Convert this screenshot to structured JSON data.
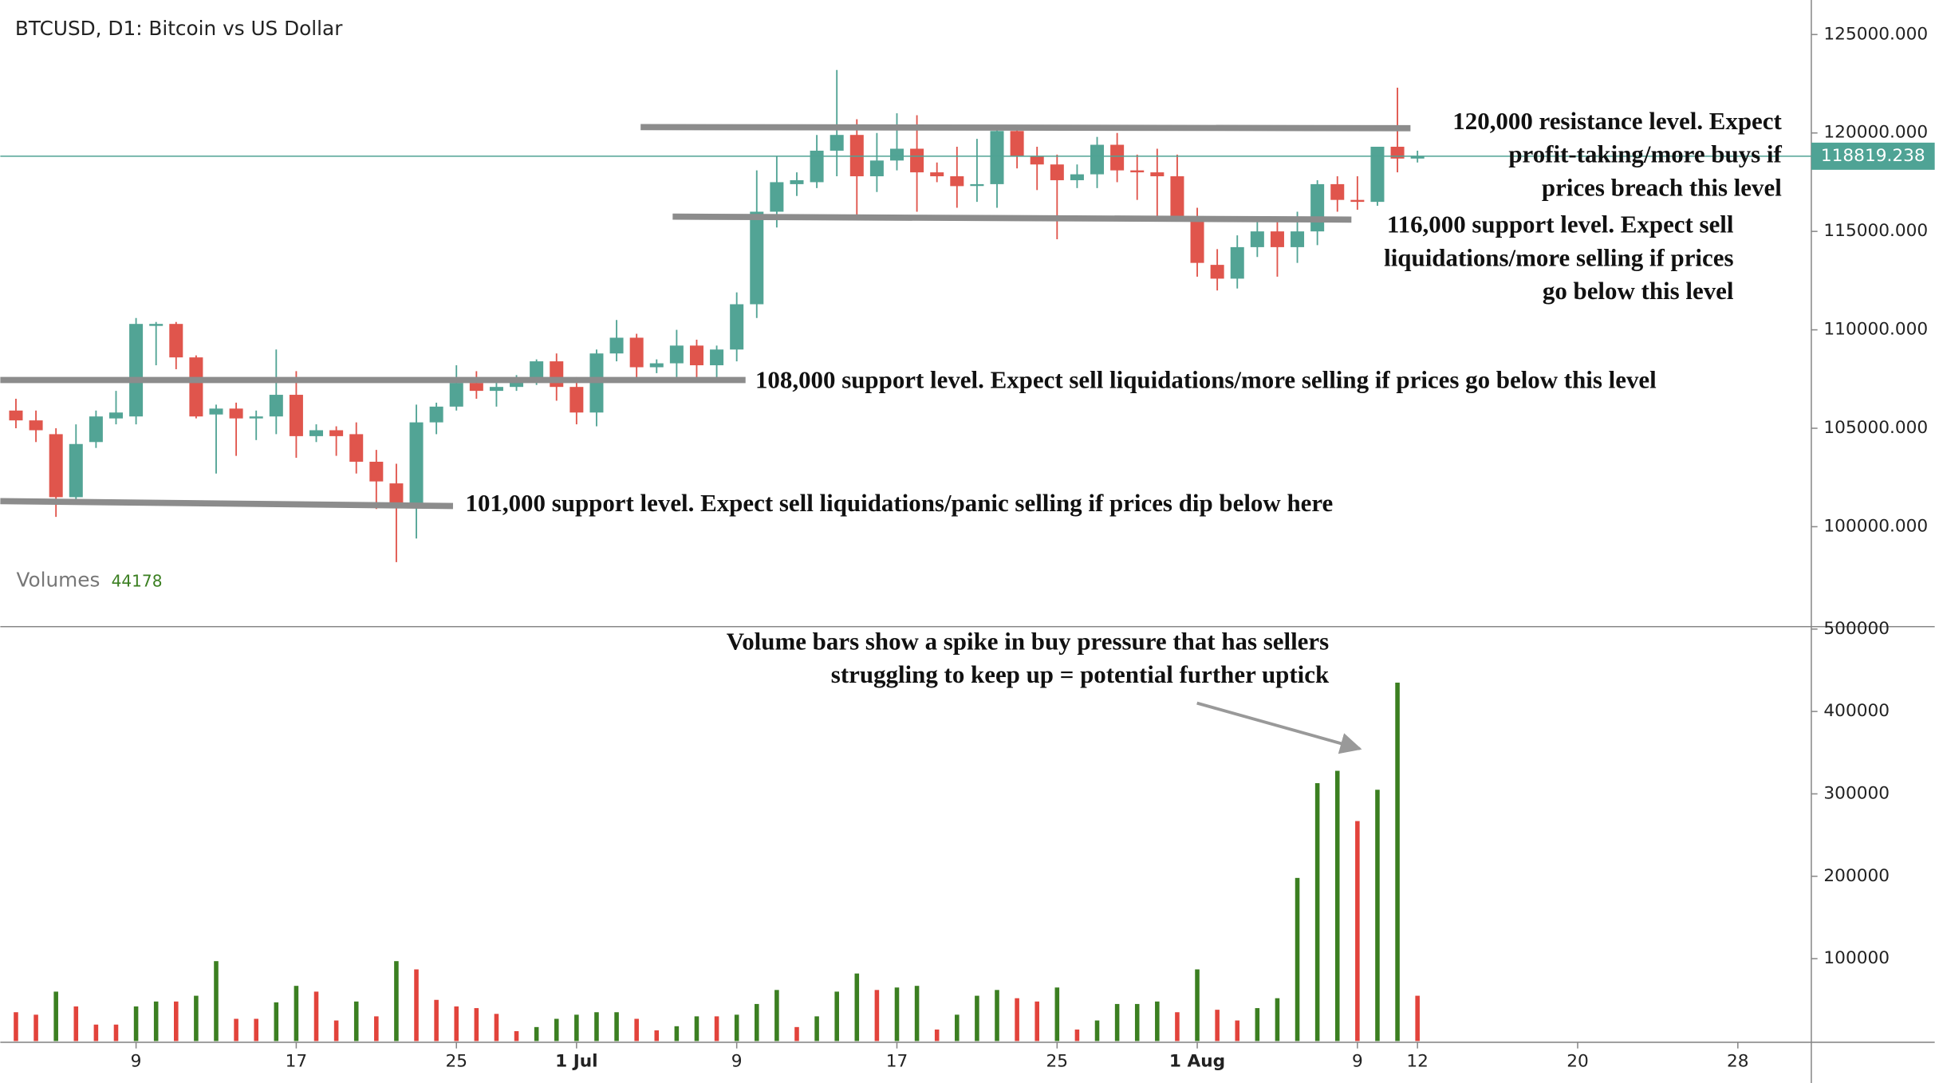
{
  "chart_data": {
    "type": "candlestick",
    "title": "BTCUSD, D1: Bitcoin vs US Dollar",
    "x": [
      3,
      4,
      5,
      6,
      7,
      8,
      9,
      10,
      11,
      12,
      13,
      14,
      15,
      16,
      17,
      18,
      19,
      20,
      21,
      22,
      23,
      24,
      25,
      26,
      27,
      28,
      29,
      30,
      31,
      32,
      33,
      34,
      35,
      36,
      37,
      38,
      39,
      40,
      41,
      42,
      43,
      44,
      45,
      46,
      47,
      48,
      49,
      50,
      51,
      52,
      53,
      54,
      55,
      56,
      57,
      58,
      59,
      60,
      61,
      62,
      63,
      64,
      65,
      66,
      67,
      68,
      69,
      70,
      71,
      72,
      73
    ],
    "open": [
      105900,
      105400,
      104700,
      101500,
      104300,
      105500,
      105600,
      110200,
      110300,
      108600,
      105700,
      106000,
      105500,
      105600,
      106700,
      104600,
      104900,
      104700,
      103300,
      102200,
      101200,
      105300,
      106100,
      107300,
      106900,
      107100,
      107500,
      108400,
      107100,
      105800,
      108800,
      109600,
      108100,
      108300,
      109200,
      108200,
      109000,
      111300,
      116000,
      117400,
      117500,
      119100,
      119900,
      117800,
      118600,
      119200,
      118000,
      117800,
      117400,
      117400,
      120100,
      118800,
      118400,
      117600,
      117900,
      119400,
      118100,
      118000,
      117800,
      115700,
      113300,
      112600,
      114200,
      115000,
      114200,
      115000,
      117400,
      116600,
      116500,
      119300,
      118700
    ],
    "high": [
      106500,
      105900,
      105000,
      105200,
      105900,
      106900,
      110600,
      110400,
      110400,
      108700,
      106200,
      106300,
      105900,
      109000,
      107900,
      105200,
      105100,
      105300,
      103900,
      103200,
      106200,
      106300,
      108200,
      107900,
      107500,
      107700,
      108500,
      108800,
      107600,
      109000,
      110500,
      109800,
      108500,
      110000,
      109500,
      109200,
      111900,
      118100,
      118800,
      118000,
      119900,
      123200,
      120700,
      120000,
      121000,
      120900,
      118500,
      119300,
      119700,
      120300,
      120200,
      119300,
      118900,
      118400,
      119800,
      120000,
      118900,
      119200,
      118900,
      116200,
      114100,
      114800,
      115700,
      115700,
      116000,
      117600,
      117800,
      117800,
      119300,
      122300,
      119100
    ],
    "low": [
      105000,
      104300,
      100500,
      101300,
      104000,
      105200,
      105200,
      108200,
      108000,
      105500,
      102700,
      103600,
      104400,
      104700,
      103500,
      104300,
      103600,
      102700,
      100900,
      98200,
      99400,
      104700,
      105900,
      106500,
      106100,
      106900,
      107200,
      106400,
      105200,
      105100,
      108400,
      107500,
      107800,
      107600,
      107500,
      107500,
      108400,
      110600,
      115200,
      116800,
      117200,
      117800,
      115800,
      117000,
      118100,
      116000,
      117500,
      116200,
      116500,
      116200,
      118200,
      117100,
      114600,
      117200,
      117200,
      117500,
      116600,
      115600,
      115500,
      112700,
      112000,
      112100,
      113700,
      112700,
      113400,
      114300,
      116000,
      116100,
      116300,
      118000,
      118500
    ],
    "close": [
      105400,
      104900,
      101500,
      104200,
      105600,
      105800,
      110300,
      110300,
      108600,
      105600,
      106000,
      105500,
      105600,
      106700,
      104600,
      104900,
      104600,
      103300,
      102300,
      101200,
      105300,
      106100,
      107300,
      106900,
      107100,
      107500,
      108400,
      107100,
      105800,
      108800,
      109600,
      108100,
      108300,
      109200,
      108200,
      109000,
      111300,
      116000,
      117500,
      117600,
      119100,
      119900,
      117800,
      118600,
      119200,
      118000,
      117800,
      117300,
      117400,
      120100,
      118800,
      118400,
      117600,
      117900,
      119400,
      118100,
      118000,
      117800,
      115700,
      113400,
      112600,
      114200,
      115000,
      114200,
      115000,
      117400,
      116600,
      116500,
      119300,
      118700,
      118819
    ],
    "up_color": "#52a495",
    "down_color": "#e0554c",
    "xlim": [
      2.22,
      92.67
    ],
    "xticks": [
      {
        "value": 9,
        "label": "9"
      },
      {
        "value": 17,
        "label": "17"
      },
      {
        "value": 25,
        "label": "25"
      },
      {
        "value": 31,
        "label": "1 Jul"
      },
      {
        "value": 39,
        "label": "9"
      },
      {
        "value": 47,
        "label": "17"
      },
      {
        "value": 55,
        "label": "25"
      },
      {
        "value": 62,
        "label": "1 Aug"
      },
      {
        "value": 70,
        "label": "9"
      },
      {
        "value": 73,
        "label": "12"
      },
      {
        "value": 81,
        "label": "20"
      },
      {
        "value": 89,
        "label": "28"
      }
    ],
    "ylim": [
      94925,
      126754
    ],
    "yticks": [
      {
        "value": 100000,
        "label": "100000.000"
      },
      {
        "value": 105000,
        "label": "105000.000"
      },
      {
        "value": 110000,
        "label": "110000.000"
      },
      {
        "value": 115000,
        "label": "115000.000"
      },
      {
        "value": 120000,
        "label": "120000.000"
      },
      {
        "value": 125000,
        "label": "125000.000"
      }
    ],
    "current_price": 118819.238,
    "current_color": "#4fa395",
    "levels": [
      {
        "start_x": 34.2,
        "end_x": 72.65,
        "start_price": 120300,
        "end_price": 120240
      },
      {
        "start_x": 35.8,
        "end_x": 69.7,
        "start_price": 115750,
        "end_price": 115600
      },
      {
        "start_x": 2.22,
        "end_x": 39.44,
        "start_price": 107450,
        "end_price": 107450
      },
      {
        "start_x": 2.22,
        "end_x": 24.83,
        "start_price": 101300,
        "end_price": 101050
      }
    ],
    "level_color": "#8c8c8c",
    "annotations": [
      {
        "lines": [
          "120,000 resistance level. Expect",
          "profit-taking/more buys if",
          "prices breach this level"
        ]
      },
      {
        "lines": [
          "116,000 support level. Expect sell",
          "liquidations/more selling if prices",
          "go below this level"
        ]
      },
      {
        "lines": [
          "108,000 support level. Expect sell liquidations/more selling if prices go below this level"
        ]
      },
      {
        "lines": [
          "101,000 support level. Expect sell liquidations/panic selling if prices dip below here"
        ]
      },
      {
        "lines": [
          "Volume bars show a spike in buy pressure that has sellers",
          "struggling to keep up = potential further uptick"
        ]
      }
    ],
    "volume": {
      "label": "Volumes",
      "legend_value": 44178,
      "values": [
        35000,
        32000,
        60000,
        42000,
        20000,
        20000,
        42000,
        48000,
        48000,
        55000,
        97000,
        27000,
        27000,
        47000,
        67000,
        60000,
        25000,
        48000,
        30000,
        97000,
        87000,
        50000,
        42000,
        40000,
        33000,
        12000,
        17000,
        27000,
        32000,
        35000,
        35000,
        27000,
        13000,
        18000,
        30000,
        30000,
        32000,
        45000,
        62000,
        17000,
        30000,
        60000,
        82000,
        62000,
        65000,
        67000,
        14000,
        32000,
        55000,
        62000,
        52000,
        48000,
        65000,
        14000,
        25000,
        45000,
        45000,
        48000,
        35000,
        87000,
        38000,
        25000,
        40000,
        52000,
        198000,
        313000,
        328000,
        267000,
        305000,
        435000,
        55000
      ],
      "colors": [
        "#e2433b",
        "#e2433b",
        "#3b7f21",
        "#e2433b",
        "#e2433b",
        "#e2433b",
        "#3b7f21",
        "#3b7f21",
        "#e2433b",
        "#3b7f21",
        "#3b7f21",
        "#e2433b",
        "#e2433b",
        "#3b7f21",
        "#3b7f21",
        "#e2433b",
        "#e2433b",
        "#3b7f21",
        "#e2433b",
        "#3b7f21",
        "#e2433b",
        "#e2433b",
        "#e2433b",
        "#e2433b",
        "#e2433b",
        "#e2433b",
        "#3b7f21",
        "#3b7f21",
        "#3b7f21",
        "#3b7f21",
        "#3b7f21",
        "#e2433b",
        "#e2433b",
        "#3b7f21",
        "#3b7f21",
        "#e2433b",
        "#3b7f21",
        "#3b7f21",
        "#3b7f21",
        "#e2433b",
        "#3b7f21",
        "#3b7f21",
        "#3b7f21",
        "#e2433b",
        "#3b7f21",
        "#3b7f21",
        "#e2433b",
        "#3b7f21",
        "#3b7f21",
        "#3b7f21",
        "#e2433b",
        "#e2433b",
        "#3b7f21",
        "#e2433b",
        "#3b7f21",
        "#3b7f21",
        "#3b7f21",
        "#3b7f21",
        "#e2433b",
        "#3b7f21",
        "#e2433b",
        "#e2433b",
        "#3b7f21",
        "#3b7f21",
        "#3b7f21",
        "#3b7f21",
        "#3b7f21",
        "#e2433b",
        "#3b7f21",
        "#3b7f21",
        "#e2433b"
      ],
      "ylim": [
        0,
        500000
      ],
      "yticks": [
        100000,
        200000,
        300000,
        400000,
        500000
      ]
    }
  }
}
